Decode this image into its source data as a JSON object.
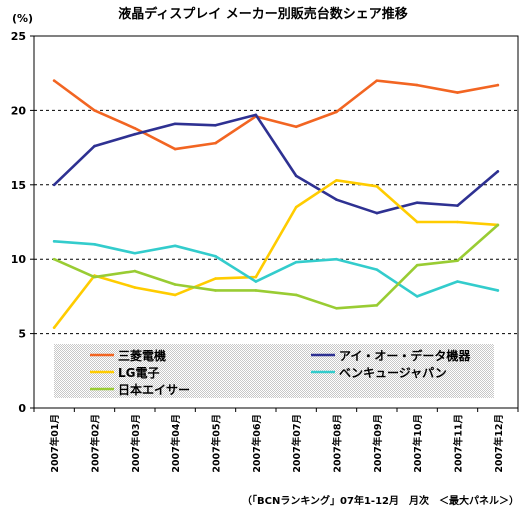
{
  "chart_data": {
    "type": "line",
    "title": "液晶ディスプレイ メーカー別販売台数シェア推移",
    "unit_label": "(%)",
    "source_note": "（「BCNランキング」07年1-12月　月次　＜最大パネル＞）",
    "xlabel": "",
    "ylabel": "",
    "ylim": [
      0,
      25
    ],
    "yticks": [
      0,
      5,
      10,
      15,
      20,
      25
    ],
    "grid": "horizontal-dashed",
    "legend_position": "bottom-inside",
    "categories": [
      "2007年01月",
      "2007年02月",
      "2007年03月",
      "2007年04月",
      "2007年05月",
      "2007年06月",
      "2007年07月",
      "2007年08月",
      "2007年09月",
      "2007年10月",
      "2007年11月",
      "2007年12月"
    ],
    "series": [
      {
        "name": "三菱電機",
        "color": "#f26522",
        "values": [
          22.0,
          20.0,
          18.8,
          17.4,
          17.8,
          19.6,
          18.9,
          19.9,
          22.0,
          21.7,
          21.2,
          21.7
        ]
      },
      {
        "name": "アイ・オー・データ機器",
        "color": "#2e3192",
        "values": [
          15.0,
          17.6,
          18.4,
          19.1,
          19.0,
          19.7,
          15.6,
          14.0,
          13.1,
          13.8,
          13.6,
          15.9
        ]
      },
      {
        "name": "LG電子",
        "color": "#ffcc00",
        "values": [
          5.4,
          8.9,
          8.1,
          7.6,
          8.7,
          8.8,
          13.5,
          15.3,
          14.9,
          12.5,
          12.5,
          12.3
        ]
      },
      {
        "name": "ベンキュージャパン",
        "color": "#33cccc",
        "values": [
          11.2,
          11.0,
          10.4,
          10.9,
          10.2,
          8.5,
          9.8,
          10.0,
          9.3,
          7.5,
          8.5,
          7.9
        ]
      },
      {
        "name": "日本エイサー",
        "color": "#99cc33",
        "values": [
          10.0,
          8.8,
          9.2,
          8.3,
          7.9,
          7.9,
          7.6,
          6.7,
          6.9,
          9.6,
          9.9,
          12.3
        ]
      }
    ]
  }
}
